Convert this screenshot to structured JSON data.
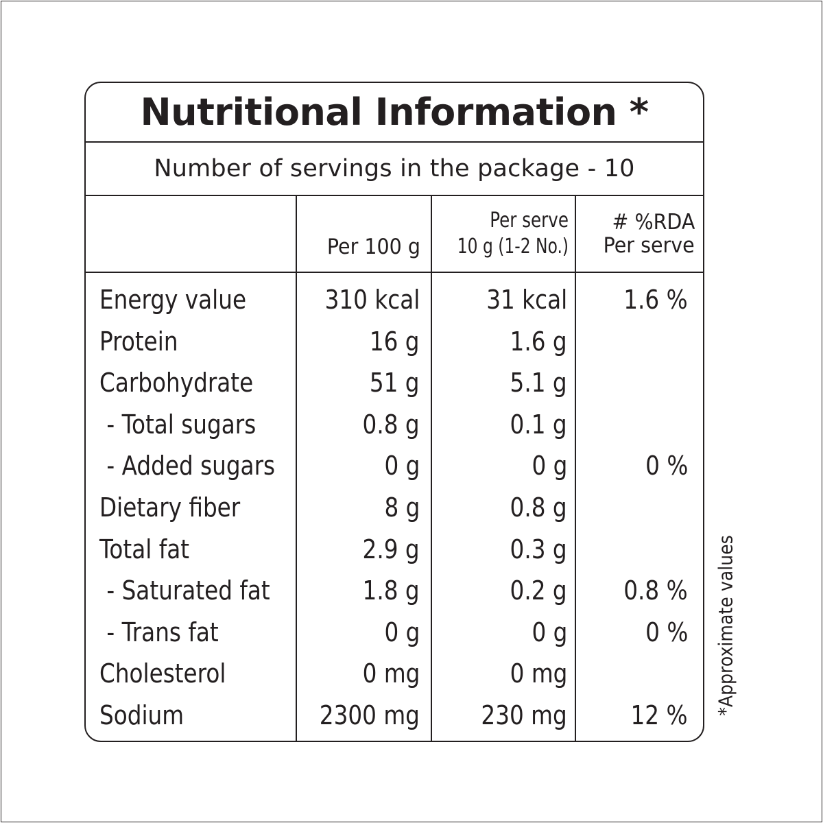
{
  "title": "Nutritional Information *",
  "servings_line": "Number of servings in the package - 10",
  "columns": {
    "per_100g": "Per 100 g",
    "per_serve_line1": "Per serve",
    "per_serve_line2": "10 g (1-2 No.)",
    "rda_line1": "# %RDA",
    "rda_line2": "Per serve"
  },
  "rows": [
    {
      "name": "Energy value",
      "per_100g": "310 kcal",
      "per_serve": "31 kcal",
      "rda": "1.6 %"
    },
    {
      "name": "Protein",
      "per_100g": "16 g",
      "per_serve": "1.6 g",
      "rda": ""
    },
    {
      "name": "Carbohydrate",
      "per_100g": "51 g",
      "per_serve": "5.1 g",
      "rda": ""
    },
    {
      "name": " - Total sugars",
      "per_100g": "0.8 g",
      "per_serve": "0.1 g",
      "rda": ""
    },
    {
      "name": " - Added sugars",
      "per_100g": "0 g",
      "per_serve": "0 g",
      "rda": "0 %"
    },
    {
      "name": "Dietary fiber",
      "per_100g": "8 g",
      "per_serve": "0.8 g",
      "rda": ""
    },
    {
      "name": "Total fat",
      "per_100g": "2.9 g",
      "per_serve": "0.3 g",
      "rda": ""
    },
    {
      "name": " - Saturated fat",
      "per_100g": "1.8 g",
      "per_serve": "0.2 g",
      "rda": "0.8 %"
    },
    {
      "name": " - Trans fat",
      "per_100g": "0 g",
      "per_serve": "0 g",
      "rda": "0 %"
    },
    {
      "name": "Cholesterol",
      "per_100g": "0 mg",
      "per_serve": "0 mg",
      "rda": ""
    },
    {
      "name": "Sodium",
      "per_100g": "2300 mg",
      "per_serve": "230 mg",
      "rda": "12 %"
    }
  ],
  "footnote": "*Approximate values",
  "colors": {
    "ink": "#231f20",
    "background": "#ffffff"
  }
}
